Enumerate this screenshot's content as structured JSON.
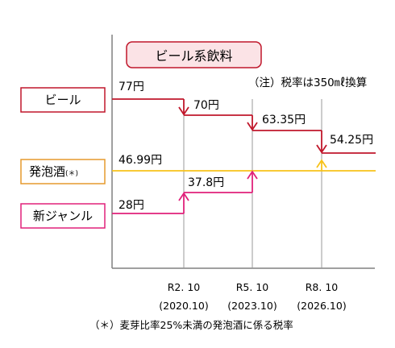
{
  "chart_data": {
    "type": "line",
    "title": "ビール系飲料",
    "note": "（注）税率は350㎖換算",
    "footnote": "（＊）麦芽比率25%未満の発泡酒に係る税率",
    "x_ticks": [
      {
        "label": "R2. 10",
        "sub": "(2020.10)"
      },
      {
        "label": "R5. 10",
        "sub": "(2023.10)"
      },
      {
        "label": "R8. 10",
        "sub": "(2026.10)"
      }
    ],
    "series": [
      {
        "name": "ビール",
        "color": "#c0172b",
        "values": [
          77,
          70,
          63.35,
          54.25
        ],
        "labels": [
          "77円",
          "70円",
          "63.35円",
          "54.25円"
        ]
      },
      {
        "name": "発泡酒",
        "name_suffix": "(＊)",
        "color": "#f7c21a",
        "values": [
          46.99,
          46.99,
          46.99,
          46.99
        ],
        "labels": [
          "46.99円"
        ]
      },
      {
        "name": "新ジャンル",
        "color": "#e0217a",
        "values": [
          28,
          37.8,
          46.99,
          46.99
        ],
        "labels": [
          "28円",
          "37.8円"
        ]
      }
    ],
    "ylim": [
      20,
      80
    ],
    "axis_color": "#808080",
    "grid_color": "#9a9a9a",
    "title_box_fill": "#fbe3e6",
    "title_box_border": "#c0172b",
    "happoshu_box_border": "#e69a2d"
  }
}
